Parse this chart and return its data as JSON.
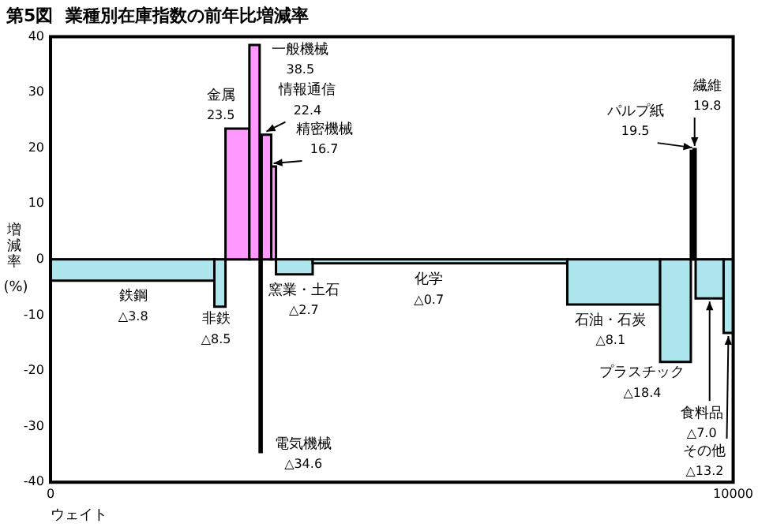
{
  "chart_data": {
    "type": "histogram",
    "title": "第5図  業種別在庫指数の前年比増減率",
    "xlabel": "ウェイト",
    "ylabel": "増減率(%)",
    "bins": [
      0,
      2400,
      2563,
      2913,
      3063,
      3093,
      3233,
      3303,
      3840,
      7570,
      8930,
      9380,
      9420,
      9450,
      9860,
      10000
    ],
    "values": [
      -3.8,
      -8.5,
      23.5,
      38.5,
      -34.6,
      22.4,
      16.7,
      -2.7,
      -0.7,
      -8.1,
      -18.4,
      19.5,
      19.8,
      -7.0,
      -13.2
    ],
    "colors": [
      "#aee6ee",
      "#aee6ee",
      "#ff99ff",
      "#ff99ff",
      "#000000",
      "#ff99ff",
      "#ff99ff",
      "#aee6ee",
      "#aee6ee",
      "#aee6ee",
      "#aee6ee",
      "#000000",
      "#000000",
      "#aee6ee",
      "#aee6ee"
    ],
    "annotations": [
      {
        "text": "鉄鋼\n△3.8",
        "x": 1200,
        "y": -3.8
      },
      {
        "text": "非鉄\n△8.5",
        "x": 2481.5,
        "y": -8.5
      },
      {
        "text": "金属\n23.5",
        "x": 2738,
        "y": 23.5
      },
      {
        "text": "一般機械\n38.5",
        "x": 2988,
        "y": 38.5
      },
      {
        "text": "電気機械\n△34.6",
        "x": 3078,
        "y": -34.6
      },
      {
        "text": "情報通信\n22.4",
        "x": 3163,
        "y": 22.4
      },
      {
        "text": "精密機械\n16.7",
        "x": 3268,
        "y": 16.7
      },
      {
        "text": "窯業・土石\n△2.7",
        "x": 3571.5,
        "y": -2.7
      },
      {
        "text": "化学\n△0.7",
        "x": 5705,
        "y": -0.7
      },
      {
        "text": "石油・石炭\n△8.1",
        "x": 8250,
        "y": -8.1
      },
      {
        "text": "プラスチック\n△18.4",
        "x": 9155,
        "y": -18.4
      },
      {
        "text": "パルプ紙\n19.5",
        "x": 9400,
        "y": 19.5
      },
      {
        "text": "繊維\n19.8",
        "x": 9435,
        "y": 19.8
      },
      {
        "text": "食料品\n△7.0",
        "x": 9655,
        "y": -7.0
      },
      {
        "text": "その他\n△13.2",
        "x": 9930,
        "y": -13.2
      }
    ],
    "ref_lines": [
      {
        "axis": "y",
        "value": 0
      }
    ],
    "xlim": [
      0,
      10000
    ],
    "xticks": [
      0,
      10000
    ],
    "ylim": [
      -40,
      40
    ],
    "yticks": [
      -40,
      -30,
      -20,
      -10,
      0,
      10,
      20,
      30,
      40
    ],
    "grid": false,
    "legend": false
  }
}
